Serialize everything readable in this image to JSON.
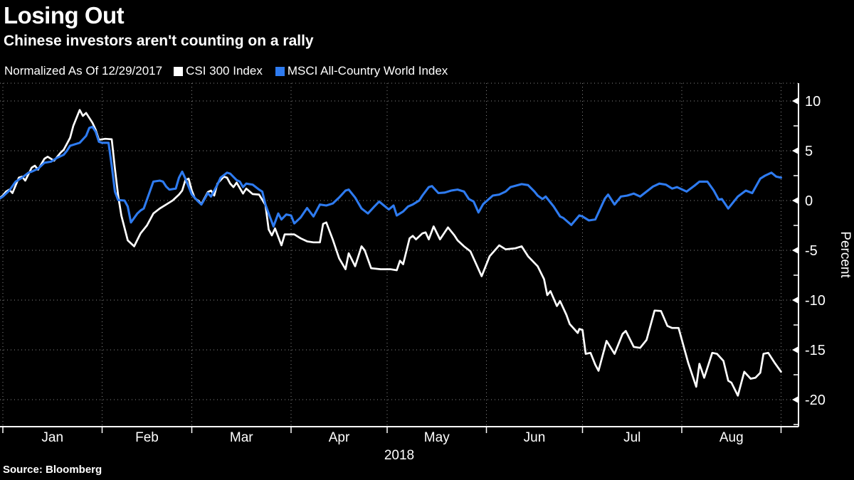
{
  "header": {
    "title": "Losing Out",
    "subtitle": "Chinese investors aren't counting on a rally"
  },
  "legend": {
    "note": "Normalized As Of 12/29/2017",
    "series": [
      {
        "label": "CSI 300 Index",
        "color": "#ffffff"
      },
      {
        "label": "MSCI All-Country World Index",
        "color": "#2e7bf0"
      }
    ]
  },
  "footer": {
    "source": "Source:  Bloomberg"
  },
  "chart_data": {
    "type": "line",
    "title": "Losing Out",
    "subtitle": "Chinese investors aren't counting on a rally",
    "normalized_as_of": "12/29/2017",
    "background": "#000000",
    "grid": "dotted",
    "legend_position": "top",
    "x_unit": "days since 01/01/2018 (first point is 12/29/2017)",
    "x_axis": {
      "label": "2018",
      "months": [
        {
          "label": "Jan",
          "start_day": 0
        },
        {
          "label": "Feb",
          "start_day": 31
        },
        {
          "label": "Mar",
          "start_day": 59
        },
        {
          "label": "Apr",
          "start_day": 90
        },
        {
          "label": "May",
          "start_day": 120
        },
        {
          "label": "Jun",
          "start_day": 151
        },
        {
          "label": "Jul",
          "start_day": 181
        },
        {
          "label": "Aug",
          "start_day": 212
        }
      ],
      "end_day": 243
    },
    "y_axis": {
      "label": "Percent",
      "major_ticks": [
        10,
        5,
        0,
        -5,
        -10,
        -15,
        -20
      ],
      "minor_step": 2.5,
      "range": [
        -22.5,
        11.8
      ]
    },
    "series": [
      {
        "name": "CSI 300 Index",
        "color": "#ffffff",
        "width": 2.7,
        "points": [
          [
            -2,
            0
          ],
          [
            0,
            0.5
          ],
          [
            1,
            0.9
          ],
          [
            2,
            1.1
          ],
          [
            3,
            0.75
          ],
          [
            5,
            2.3
          ],
          [
            6,
            2.4
          ],
          [
            7,
            2.0
          ],
          [
            9,
            3.3
          ],
          [
            10,
            3.5
          ],
          [
            11,
            3.1
          ],
          [
            13,
            4.2
          ],
          [
            14,
            4.4
          ],
          [
            16,
            4.0
          ],
          [
            18,
            4.8
          ],
          [
            19,
            5.1
          ],
          [
            21,
            6.3
          ],
          [
            22,
            7.5
          ],
          [
            24,
            9.1
          ],
          [
            25,
            8.5
          ],
          [
            26,
            8.8
          ],
          [
            28,
            7.8
          ],
          [
            29,
            7.1
          ],
          [
            30,
            6.1
          ],
          [
            32,
            6.2
          ],
          [
            34,
            6.15
          ],
          [
            35,
            3.2
          ],
          [
            36,
            0.5
          ],
          [
            37,
            -1.5
          ],
          [
            39,
            -4.0
          ],
          [
            41,
            -4.6
          ],
          [
            43,
            -3.3
          ],
          [
            45,
            -2.5
          ],
          [
            47,
            -1.3
          ],
          [
            49,
            -0.8
          ],
          [
            51,
            -0.4
          ],
          [
            53,
            0.0
          ],
          [
            55,
            0.6
          ],
          [
            56,
            1.0
          ],
          [
            57,
            2.05
          ],
          [
            58,
            2.2
          ],
          [
            59,
            1.0
          ],
          [
            60,
            0.2
          ],
          [
            61,
            0.0
          ],
          [
            62,
            -0.35
          ],
          [
            64,
            0.85
          ],
          [
            65,
            1.0
          ],
          [
            66,
            0.5
          ],
          [
            67,
            1.7
          ],
          [
            69,
            2.4
          ],
          [
            70,
            2.3
          ],
          [
            71,
            1.7
          ],
          [
            72,
            1.35
          ],
          [
            73,
            1.8
          ],
          [
            75,
            0.7
          ],
          [
            76,
            1.2
          ],
          [
            78,
            0.65
          ],
          [
            80,
            0.6
          ],
          [
            82,
            -0.45
          ],
          [
            83,
            -2.9
          ],
          [
            84,
            -3.5
          ],
          [
            85,
            -2.8
          ],
          [
            87,
            -4.5
          ],
          [
            88,
            -3.4
          ],
          [
            90,
            -3.4
          ],
          [
            91,
            -3.4
          ],
          [
            93,
            -3.8
          ],
          [
            95,
            -4.1
          ],
          [
            97,
            -4.2
          ],
          [
            99,
            -4.2
          ],
          [
            100,
            -2.35
          ],
          [
            101,
            -2.2
          ],
          [
            103,
            -3.9
          ],
          [
            105,
            -5.8
          ],
          [
            107,
            -6.9
          ],
          [
            108,
            -5.3
          ],
          [
            110,
            -6.6
          ],
          [
            112,
            -4.6
          ],
          [
            113,
            -5.0
          ],
          [
            115,
            -6.8
          ],
          [
            118,
            -6.9
          ],
          [
            121,
            -6.9
          ],
          [
            123,
            -7.0
          ],
          [
            124,
            -6.05
          ],
          [
            125,
            -6.4
          ],
          [
            127,
            -3.8
          ],
          [
            128,
            -3.55
          ],
          [
            129,
            -3.9
          ],
          [
            131,
            -3.3
          ],
          [
            132,
            -3.2
          ],
          [
            133,
            -3.9
          ],
          [
            134.5,
            -2.6
          ],
          [
            136.5,
            -3.9
          ],
          [
            139,
            -2.7
          ],
          [
            141,
            -3.5
          ],
          [
            142,
            -4.0
          ],
          [
            144,
            -4.6
          ],
          [
            146,
            -5.1
          ],
          [
            149.5,
            -7.6
          ],
          [
            152,
            -5.6
          ],
          [
            155,
            -4.5
          ],
          [
            157,
            -4.9
          ],
          [
            160,
            -4.8
          ],
          [
            162,
            -4.6
          ],
          [
            164,
            -5.6
          ],
          [
            167,
            -6.6
          ],
          [
            169,
            -7.9
          ],
          [
            170,
            -9.5
          ],
          [
            171,
            -9.1
          ],
          [
            173,
            -10.6
          ],
          [
            174,
            -10.1
          ],
          [
            176,
            -11.5
          ],
          [
            177,
            -12.4
          ],
          [
            179.5,
            -13.3
          ],
          [
            180,
            -12.9
          ],
          [
            181,
            -13.0
          ],
          [
            182,
            -15.4
          ],
          [
            183.5,
            -15.3
          ],
          [
            185,
            -16.5
          ],
          [
            186,
            -17.1
          ],
          [
            188.5,
            -14.1
          ],
          [
            191,
            -15.4
          ],
          [
            193.5,
            -13.4
          ],
          [
            194.5,
            -13.1
          ],
          [
            197,
            -14.7
          ],
          [
            199,
            -14.8
          ],
          [
            201,
            -14.0
          ],
          [
            203.5,
            -11.05
          ],
          [
            205.5,
            -11.1
          ],
          [
            207.5,
            -12.6
          ],
          [
            209,
            -12.8
          ],
          [
            211,
            -12.8
          ],
          [
            214,
            -16.3
          ],
          [
            216.5,
            -18.7
          ],
          [
            217.5,
            -16.4
          ],
          [
            219,
            -17.8
          ],
          [
            221.5,
            -15.3
          ],
          [
            223,
            -15.4
          ],
          [
            225,
            -16.1
          ],
          [
            226.5,
            -18.1
          ],
          [
            227.5,
            -18.3
          ],
          [
            229.5,
            -19.6
          ],
          [
            231.5,
            -17.2
          ],
          [
            233.5,
            -17.9
          ],
          [
            235,
            -17.8
          ],
          [
            236.5,
            -17.3
          ],
          [
            237.5,
            -15.4
          ],
          [
            239,
            -15.3
          ],
          [
            241,
            -16.3
          ],
          [
            243,
            -17.2
          ]
        ]
      },
      {
        "name": "MSCI All-Country World Index",
        "color": "#2e7bf0",
        "width": 3.1,
        "points": [
          [
            -2,
            0
          ],
          [
            0,
            0.4
          ],
          [
            2,
            1.0
          ],
          [
            4,
            1.9
          ],
          [
            6,
            2.3
          ],
          [
            8,
            2.8
          ],
          [
            9,
            2.9
          ],
          [
            11,
            3.2
          ],
          [
            13,
            3.8
          ],
          [
            15,
            3.9
          ],
          [
            17,
            4.3
          ],
          [
            19,
            4.6
          ],
          [
            20,
            5.0
          ],
          [
            21,
            5.5
          ],
          [
            23,
            5.7
          ],
          [
            24,
            5.8
          ],
          [
            26,
            6.5
          ],
          [
            27,
            7.3
          ],
          [
            28,
            7.4
          ],
          [
            29,
            6.9
          ],
          [
            30,
            5.9
          ],
          [
            31,
            5.8
          ],
          [
            33,
            5.8
          ],
          [
            34,
            3.5
          ],
          [
            35,
            0.9
          ],
          [
            36,
            0.05
          ],
          [
            38,
            0.0
          ],
          [
            39,
            -0.6
          ],
          [
            40,
            -2.2
          ],
          [
            42,
            -1.3
          ],
          [
            43,
            -1.0
          ],
          [
            44,
            -0.8
          ],
          [
            46,
            1.0
          ],
          [
            47,
            1.9
          ],
          [
            49,
            2.0
          ],
          [
            50,
            1.9
          ],
          [
            51,
            1.4
          ],
          [
            52,
            1.1
          ],
          [
            54,
            1.2
          ],
          [
            55,
            2.3
          ],
          [
            56,
            2.9
          ],
          [
            57,
            2.2
          ],
          [
            59,
            0.6
          ],
          [
            61,
            -0.1
          ],
          [
            62,
            -0.4
          ],
          [
            63,
            0.15
          ],
          [
            64,
            0.75
          ],
          [
            65,
            0.4
          ],
          [
            67,
            1.6
          ],
          [
            68,
            2.3
          ],
          [
            70,
            2.8
          ],
          [
            71,
            2.7
          ],
          [
            73,
            2.05
          ],
          [
            74,
            1.9
          ],
          [
            75,
            1.35
          ],
          [
            76,
            1.7
          ],
          [
            78,
            1.6
          ],
          [
            80,
            1.1
          ],
          [
            81,
            0.9
          ],
          [
            82,
            -0.4
          ],
          [
            83,
            -1.3
          ],
          [
            84.5,
            -2.6
          ],
          [
            86,
            -1.3
          ],
          [
            87,
            -1.9
          ],
          [
            88.5,
            -1.4
          ],
          [
            90,
            -1.5
          ],
          [
            91,
            -2.3
          ],
          [
            93,
            -1.7
          ],
          [
            95,
            -0.75
          ],
          [
            97,
            -1.6
          ],
          [
            99,
            -0.4
          ],
          [
            101,
            -0.5
          ],
          [
            103,
            -0.3
          ],
          [
            105,
            0.3
          ],
          [
            107,
            1.0
          ],
          [
            108,
            1.1
          ],
          [
            110,
            0.3
          ],
          [
            112,
            -0.8
          ],
          [
            114,
            -1.3
          ],
          [
            116,
            -0.6
          ],
          [
            117.5,
            -0.1
          ],
          [
            119,
            -0.5
          ],
          [
            120.5,
            -0.9
          ],
          [
            122,
            -0.5
          ],
          [
            123,
            -1.5
          ],
          [
            125,
            -1.1
          ],
          [
            126.5,
            -0.6
          ],
          [
            128,
            -0.4
          ],
          [
            130,
            0.0
          ],
          [
            131,
            0.5
          ],
          [
            133,
            1.35
          ],
          [
            134,
            1.45
          ],
          [
            136,
            0.75
          ],
          [
            138,
            0.8
          ],
          [
            140,
            1.0
          ],
          [
            142,
            1.1
          ],
          [
            144,
            0.9
          ],
          [
            145.5,
            0.15
          ],
          [
            147,
            -0.1
          ],
          [
            148.5,
            -1.2
          ],
          [
            150,
            -0.35
          ],
          [
            153,
            0.5
          ],
          [
            155,
            0.6
          ],
          [
            157,
            0.9
          ],
          [
            158.5,
            1.35
          ],
          [
            162,
            1.65
          ],
          [
            164,
            1.55
          ],
          [
            166,
            0.9
          ],
          [
            167,
            0.5
          ],
          [
            168.5,
            0.15
          ],
          [
            169.5,
            0.4
          ],
          [
            172,
            -0.6
          ],
          [
            174,
            -1.6
          ],
          [
            175,
            -1.75
          ],
          [
            177.5,
            -2.45
          ],
          [
            180,
            -1.5
          ],
          [
            181,
            -1.6
          ],
          [
            183,
            -2.0
          ],
          [
            185,
            -1.9
          ],
          [
            187,
            -0.5
          ],
          [
            188,
            0.2
          ],
          [
            189,
            0.6
          ],
          [
            191,
            -0.4
          ],
          [
            193,
            0.4
          ],
          [
            195,
            0.5
          ],
          [
            197,
            0.7
          ],
          [
            199,
            0.4
          ],
          [
            201,
            0.9
          ],
          [
            203,
            1.4
          ],
          [
            205,
            1.7
          ],
          [
            207,
            1.6
          ],
          [
            209,
            1.2
          ],
          [
            210.5,
            1.35
          ],
          [
            213.5,
            0.9
          ],
          [
            216,
            1.5
          ],
          [
            217.5,
            1.9
          ],
          [
            220,
            1.9
          ],
          [
            222,
            1.0
          ],
          [
            223.5,
            0.1
          ],
          [
            224.5,
            0.15
          ],
          [
            226.5,
            -0.8
          ],
          [
            228,
            -0.2
          ],
          [
            229.5,
            0.4
          ],
          [
            232,
            1.0
          ],
          [
            234,
            0.75
          ],
          [
            236.5,
            2.2
          ],
          [
            238,
            2.5
          ],
          [
            240,
            2.8
          ],
          [
            241.5,
            2.4
          ],
          [
            243,
            2.3
          ]
        ]
      }
    ]
  }
}
